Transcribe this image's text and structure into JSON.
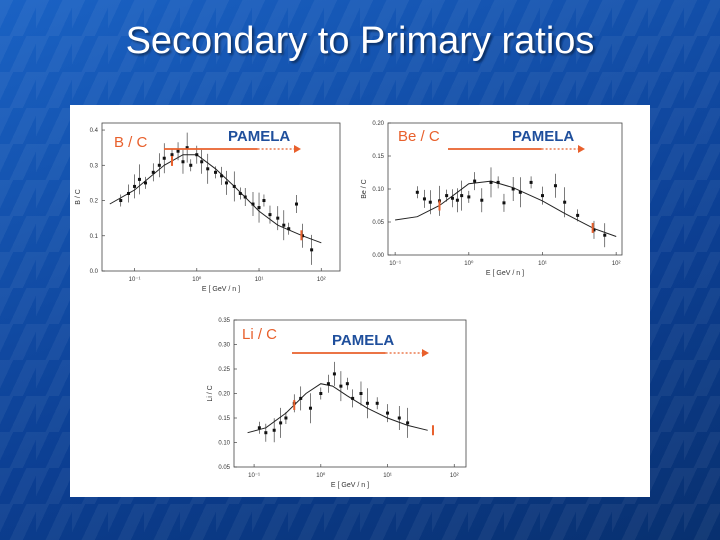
{
  "slide": {
    "title": "Secondary to Primary ratios"
  },
  "colors": {
    "background": "#0f4aa3",
    "label_orange": "#e8602c",
    "label_green": "#6fb04a",
    "pamela_blue": "#1f4f9c"
  },
  "chart_data": [
    {
      "type": "scatter",
      "id": "bc",
      "label": "B / C",
      "annotation": "PAMELA",
      "ylabel": "B / C",
      "xlabel": "E [ GeV / n ]",
      "xscale": "log",
      "xlim": [
        0.03,
        200
      ],
      "ylim": [
        0.0,
        0.42
      ],
      "yticks": [
        0.0,
        0.1,
        0.2,
        0.3,
        0.4
      ],
      "ytick_labels": [
        "0.0",
        "0.1",
        "0.2",
        "0.3",
        "0.4"
      ],
      "xticks": [
        0.1,
        1,
        10,
        100
      ],
      "xtick_labels": [
        "10⁻¹",
        "10⁰",
        "10¹",
        "10²"
      ],
      "arrow_range": [
        0.4,
        40
      ],
      "model_curve": {
        "x": [
          0.04,
          0.1,
          0.3,
          0.6,
          1,
          2,
          4,
          10,
          20,
          50,
          100
        ],
        "y": [
          0.19,
          0.23,
          0.3,
          0.33,
          0.33,
          0.29,
          0.24,
          0.17,
          0.13,
          0.1,
          0.08
        ]
      },
      "points": {
        "x": [
          0.06,
          0.08,
          0.1,
          0.12,
          0.15,
          0.2,
          0.25,
          0.3,
          0.4,
          0.5,
          0.6,
          0.7,
          0.8,
          1.0,
          1.2,
          1.5,
          2,
          2.5,
          3,
          4,
          5,
          6,
          8,
          10,
          12,
          15,
          20,
          25,
          30,
          40,
          50,
          70
        ],
        "y": [
          0.2,
          0.22,
          0.24,
          0.26,
          0.25,
          0.28,
          0.3,
          0.32,
          0.33,
          0.34,
          0.31,
          0.35,
          0.3,
          0.33,
          0.31,
          0.29,
          0.28,
          0.27,
          0.25,
          0.24,
          0.22,
          0.21,
          0.19,
          0.18,
          0.2,
          0.16,
          0.15,
          0.13,
          0.12,
          0.19,
          0.1,
          0.06
        ]
      }
    },
    {
      "type": "scatter",
      "id": "bec",
      "label": "Be / C",
      "annotation": "PAMELA",
      "ylabel": "Be / C",
      "xlabel": "E [ GeV / n ]",
      "xscale": "log",
      "xlim": [
        0.08,
        120
      ],
      "ylim": [
        0.0,
        0.2
      ],
      "yticks": [
        0.0,
        0.05,
        0.1,
        0.15,
        0.2
      ],
      "ytick_labels": [
        "0.00",
        "0.05",
        "0.10",
        "0.15",
        "0.20"
      ],
      "xticks": [
        0.1,
        1,
        10,
        100
      ],
      "xtick_labels": [
        "10⁻¹",
        "10⁰",
        "10¹",
        "10²"
      ],
      "arrow_range": [
        0.4,
        40
      ],
      "model_curve": {
        "x": [
          0.1,
          0.2,
          0.4,
          0.7,
          1,
          2,
          4,
          10,
          20,
          50,
          100
        ],
        "y": [
          0.053,
          0.058,
          0.075,
          0.095,
          0.108,
          0.112,
          0.102,
          0.082,
          0.063,
          0.04,
          0.028
        ]
      },
      "points": {
        "x": [
          0.2,
          0.25,
          0.3,
          0.4,
          0.5,
          0.6,
          0.7,
          0.8,
          1.0,
          1.2,
          1.5,
          2,
          2.5,
          3,
          4,
          5,
          7,
          10,
          15,
          20,
          30,
          50,
          70
        ],
        "y": [
          0.095,
          0.085,
          0.08,
          0.082,
          0.09,
          0.086,
          0.083,
          0.09,
          0.088,
          0.112,
          0.083,
          0.11,
          0.11,
          0.079,
          0.1,
          0.095,
          0.11,
          0.09,
          0.105,
          0.08,
          0.06,
          0.038,
          0.03
        ]
      }
    },
    {
      "type": "scatter",
      "id": "lic",
      "label": "Li / C",
      "annotation": "PAMELA",
      "ylabel": "Li / C",
      "xlabel": "E [ GeV / n ]",
      "xscale": "log",
      "xlim": [
        0.05,
        150
      ],
      "ylim": [
        0.05,
        0.35
      ],
      "yticks": [
        0.05,
        0.1,
        0.15,
        0.2,
        0.25,
        0.3,
        0.35
      ],
      "ytick_labels": [
        "0.05",
        "0.10",
        "0.15",
        "0.20",
        "0.25",
        "0.30",
        "0.35"
      ],
      "xticks": [
        0.1,
        1,
        10,
        100
      ],
      "xtick_labels": [
        "10⁻¹",
        "10⁰",
        "10¹",
        "10²"
      ],
      "arrow_range": [
        0.4,
        40
      ],
      "model_curve": {
        "x": [
          0.08,
          0.15,
          0.3,
          0.6,
          1,
          1.5,
          2.5,
          5,
          10,
          20,
          40
        ],
        "y": [
          0.12,
          0.13,
          0.16,
          0.2,
          0.22,
          0.215,
          0.195,
          0.17,
          0.15,
          0.135,
          0.125
        ]
      },
      "points": {
        "x": [
          0.12,
          0.15,
          0.2,
          0.25,
          0.3,
          0.4,
          0.5,
          0.7,
          1.0,
          1.3,
          1.6,
          2,
          2.5,
          3,
          4,
          5,
          7,
          10,
          15,
          20
        ],
        "y": [
          0.13,
          0.12,
          0.125,
          0.14,
          0.15,
          0.18,
          0.19,
          0.17,
          0.2,
          0.22,
          0.24,
          0.215,
          0.22,
          0.19,
          0.2,
          0.18,
          0.18,
          0.16,
          0.15,
          0.14
        ]
      }
    }
  ]
}
